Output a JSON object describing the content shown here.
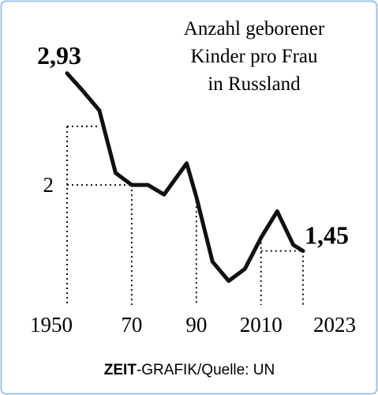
{
  "chart_data": {
    "type": "line",
    "title": [
      "Anzahl geborener",
      "Kinder pro Frau",
      "in Russland"
    ],
    "source": [
      "ZEIT",
      "-GRAFIK/Quelle: UN"
    ],
    "x": [
      1950,
      1955,
      1960,
      1965,
      1970,
      1975,
      1980,
      1987,
      1990,
      1995,
      2000,
      2005,
      2010,
      2015,
      2020,
      2023
    ],
    "series": [
      {
        "name": "Kinder pro Frau",
        "color": "#111111",
        "values": [
          2.93,
          2.78,
          2.62,
          2.1,
          2.0,
          2.0,
          1.92,
          2.18,
          1.9,
          1.36,
          1.2,
          1.3,
          1.56,
          1.78,
          1.5,
          1.45
        ],
        "value_labels": [
          "2,93",
          null,
          null,
          null,
          null,
          null,
          null,
          null,
          null,
          null,
          null,
          null,
          null,
          null,
          null,
          "1,45"
        ]
      }
    ],
    "xlim": [
      1950,
      2023
    ],
    "xticks": [
      1950,
      {
        "value": 1970,
        "label": "70"
      },
      {
        "value": 1990,
        "label": "90"
      },
      2010,
      2023
    ],
    "ylim": [
      1,
      3.35
    ],
    "yticks": [
      2
    ],
    "grid": true
  }
}
